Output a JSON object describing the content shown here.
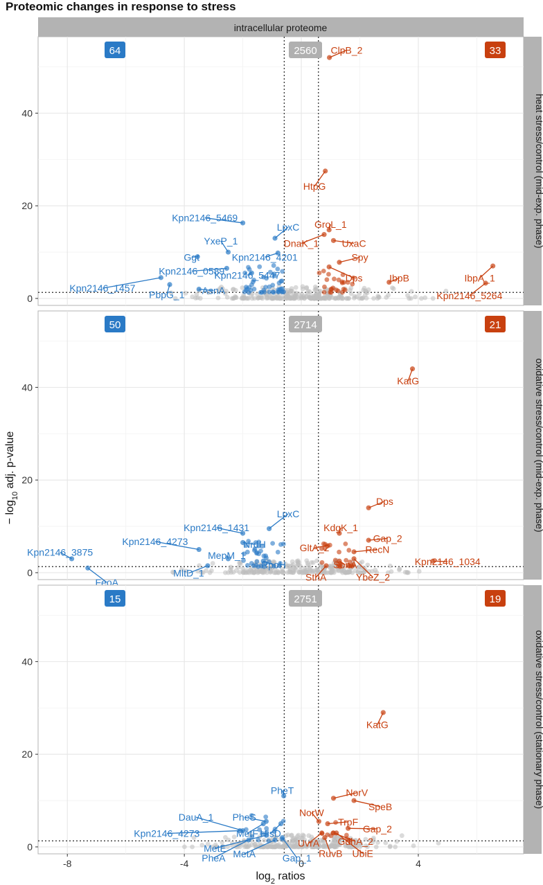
{
  "title": "Proteomic changes in response to stress",
  "colors": {
    "up": "#c8400f",
    "down": "#2a7ac6",
    "ns": "#bdbdbd",
    "strip": "#b3b3b3"
  },
  "chart_data": {
    "type": "scatter",
    "title": "Proteomic changes in response to stress",
    "column_strip": "intracellular proteome",
    "xlabel_main": "log",
    "xlabel_sub": "2",
    "xlabel_rest": " ratios",
    "ylabel_prefix": "− log",
    "ylabel_sub": "10",
    "ylabel_rest": " adj. p-value",
    "xlim": [
      -9.0,
      7.6
    ],
    "ylim": [
      -1.5,
      56.5
    ],
    "x_ticks": [
      -8,
      -4,
      0,
      4
    ],
    "x_tick_labels": [
      "-8",
      "-4",
      "0",
      "4"
    ],
    "y_ticks": [
      0,
      20,
      40
    ],
    "y_tick_labels": [
      "0",
      "20",
      "40"
    ],
    "fc_threshold": 0.585,
    "p_threshold": 1.3,
    "panels": [
      {
        "strip": "heat stress/control (mid-exp. phase)",
        "down_count": "64",
        "ns_count": "2560",
        "up_count": "33",
        "labeled": [
          {
            "name": "ClpB_2",
            "x": 0.96,
            "y": 52.0,
            "dir": "up",
            "lx": 1.55,
            "ly": 54.2
          },
          {
            "name": "HtpG",
            "x": 0.82,
            "y": 27.5,
            "dir": "up",
            "lx": 0.45,
            "ly": 24.8
          },
          {
            "name": "GroL_1",
            "x": 0.95,
            "y": 14.8,
            "dir": "up",
            "lx": 1.0,
            "ly": 16.6
          },
          {
            "name": "DnaK_1",
            "x": 0.78,
            "y": 13.8,
            "dir": "up",
            "lx": 0.0,
            "ly": 12.5
          },
          {
            "name": "UxaC",
            "x": 1.1,
            "y": 12.5,
            "dir": "up",
            "lx": 1.8,
            "ly": 12.5
          },
          {
            "name": "Spy",
            "x": 1.3,
            "y": 7.8,
            "dir": "up",
            "lx": 2.0,
            "ly": 9.5
          },
          {
            "name": "Dps",
            "x": 0.95,
            "y": 6.8,
            "dir": "up",
            "lx": 1.8,
            "ly": 5.0
          },
          {
            "name": "IbpB",
            "x": 3.0,
            "y": 3.5,
            "dir": "up",
            "lx": 3.35,
            "ly": 5.0
          },
          {
            "name": "IbpA_1",
            "x": 6.55,
            "y": 7.0,
            "dir": "up",
            "lx": 6.1,
            "ly": 5.0
          },
          {
            "name": "Kpn2146_5264",
            "x": 6.3,
            "y": 3.3,
            "dir": "up",
            "lx": 5.75,
            "ly": 1.2
          },
          {
            "name": "Kpn2146_5469",
            "x": -2.0,
            "y": 16.3,
            "dir": "down",
            "lx": -3.3,
            "ly": 18.0
          },
          {
            "name": "LpxC",
            "x": -0.9,
            "y": 13.0,
            "dir": "down",
            "lx": -0.45,
            "ly": 16.0
          },
          {
            "name": "YxeP_1",
            "x": -2.5,
            "y": 10.0,
            "dir": "down",
            "lx": -2.75,
            "ly": 13.0
          },
          {
            "name": "Ggt",
            "x": -3.55,
            "y": 9.0,
            "dir": "down",
            "lx": -3.75,
            "ly": 9.5
          },
          {
            "name": "Kpn2146_4201",
            "x": -0.8,
            "y": 9.8,
            "dir": "down",
            "lx": -1.25,
            "ly": 9.5
          },
          {
            "name": "Kpn2146_0589",
            "x": -2.55,
            "y": 6.5,
            "dir": "down",
            "lx": -3.75,
            "ly": 6.5
          },
          {
            "name": "Kpn2146_5447",
            "x": -1.7,
            "y": 5.5,
            "dir": "down",
            "lx": -1.85,
            "ly": 5.6
          },
          {
            "name": "Kpn2146_1457",
            "x": -4.8,
            "y": 4.5,
            "dir": "down",
            "lx": -6.8,
            "ly": 2.8
          },
          {
            "name": "AsnA",
            "x": -3.5,
            "y": 2.0,
            "dir": "down",
            "lx": -3.0,
            "ly": 2.3
          },
          {
            "name": "PbpG_1",
            "x": -4.5,
            "y": 3.0,
            "dir": "down",
            "lx": -4.6,
            "ly": 1.4
          }
        ]
      },
      {
        "strip": "oxidative stress/control (mid-exp. phase)",
        "down_count": "50",
        "ns_count": "2714",
        "up_count": "21",
        "labeled": [
          {
            "name": "KatG",
            "x": 3.8,
            "y": 44.0,
            "dir": "up",
            "lx": 3.65,
            "ly": 42.0
          },
          {
            "name": "Dps",
            "x": 2.3,
            "y": 14.0,
            "dir": "up",
            "lx": 2.85,
            "ly": 16.0
          },
          {
            "name": "KdgK_1",
            "x": 1.3,
            "y": 8.5,
            "dir": "up",
            "lx": 1.35,
            "ly": 10.3
          },
          {
            "name": "Gap_2",
            "x": 2.3,
            "y": 7.0,
            "dir": "up",
            "lx": 2.95,
            "ly": 8.0
          },
          {
            "name": "GltA_2",
            "x": 0.9,
            "y": 5.8,
            "dir": "up",
            "lx": 0.45,
            "ly": 6.0
          },
          {
            "name": "RecN",
            "x": 1.8,
            "y": 4.5,
            "dir": "up",
            "lx": 2.6,
            "ly": 5.6
          },
          {
            "name": "Kpn2146_1034",
            "x": 4.5,
            "y": 2.5,
            "dir": "up",
            "lx": 5.0,
            "ly": 3.0
          },
          {
            "name": "SbnA",
            "x": 1.3,
            "y": 2.5,
            "dir": "up",
            "lx": 1.5,
            "ly": 2.3
          },
          {
            "name": "SthA",
            "x": 0.85,
            "y": 1.5,
            "dir": "up",
            "lx": 0.5,
            "ly": -0.4
          },
          {
            "name": "YbeZ_2",
            "x": 1.8,
            "y": 3.0,
            "dir": "up",
            "lx": 2.45,
            "ly": -0.4
          },
          {
            "name": "LpxC",
            "x": -1.1,
            "y": 9.5,
            "dir": "down",
            "lx": -0.45,
            "ly": 13.3
          },
          {
            "name": "Kpn2146_1431",
            "x": -2.0,
            "y": 8.5,
            "dir": "down",
            "lx": -2.9,
            "ly": 10.3
          },
          {
            "name": "Kpn2146_4273",
            "x": -3.5,
            "y": 5.0,
            "dir": "down",
            "lx": -5.0,
            "ly": 7.3
          },
          {
            "name": "NrdH",
            "x": -2.0,
            "y": 6.5,
            "dir": "down",
            "lx": -1.6,
            "ly": 6.7
          },
          {
            "name": "Kpn2146_3875",
            "x": -7.85,
            "y": 3.0,
            "dir": "down",
            "lx": -8.25,
            "ly": 5.0
          },
          {
            "name": "MepM_1",
            "x": -2.5,
            "y": 3.0,
            "dir": "down",
            "lx": -2.55,
            "ly": 4.3
          },
          {
            "name": "RpoH",
            "x": -1.3,
            "y": 2.5,
            "dir": "down",
            "lx": -0.95,
            "ly": 2.3
          },
          {
            "name": "MltD_1",
            "x": -3.2,
            "y": 1.5,
            "dir": "down",
            "lx": -3.85,
            "ly": 0.5
          },
          {
            "name": "FeoA",
            "x": -7.3,
            "y": 1.0,
            "dir": "down",
            "lx": -6.65,
            "ly": -1.5
          }
        ]
      },
      {
        "strip": "oxidative stress/control (stationary phase)",
        "down_count": "15",
        "ns_count": "2751",
        "up_count": "19",
        "labeled": [
          {
            "name": "KatG",
            "x": 2.8,
            "y": 29.0,
            "dir": "up",
            "lx": 2.6,
            "ly": 27.0
          },
          {
            "name": "NorV",
            "x": 1.1,
            "y": 10.5,
            "dir": "up",
            "lx": 1.9,
            "ly": 12.3
          },
          {
            "name": "SpeB",
            "x": 1.8,
            "y": 10.0,
            "dir": "up",
            "lx": 2.7,
            "ly": 9.3
          },
          {
            "name": "NorW",
            "x": 0.6,
            "y": 5.5,
            "dir": "up",
            "lx": 0.35,
            "ly": 8.0
          },
          {
            "name": "TrpF",
            "x": 0.9,
            "y": 5.0,
            "dir": "up",
            "lx": 1.6,
            "ly": 6.0
          },
          {
            "name": "Gap_2",
            "x": 1.6,
            "y": 4.0,
            "dir": "up",
            "lx": 2.6,
            "ly": 4.5
          },
          {
            "name": "GdhA_2",
            "x": 1.1,
            "y": 3.0,
            "dir": "up",
            "lx": 1.85,
            "ly": 1.8
          },
          {
            "name": "UvrA",
            "x": 0.7,
            "y": 3.0,
            "dir": "up",
            "lx": 0.25,
            "ly": 1.4
          },
          {
            "name": "RuvB",
            "x": 0.8,
            "y": 2.0,
            "dir": "up",
            "lx": 1.0,
            "ly": -0.8
          },
          {
            "name": "UbiE",
            "x": 1.2,
            "y": 3.0,
            "dir": "up",
            "lx": 2.1,
            "ly": -0.8
          },
          {
            "name": "PheT",
            "x": -0.6,
            "y": 11.0,
            "dir": "down",
            "lx": -0.65,
            "ly": 12.8
          },
          {
            "name": "DauA_1",
            "x": -2.0,
            "y": 3.5,
            "dir": "down",
            "lx": -3.6,
            "ly": 7.0
          },
          {
            "name": "PheS",
            "x": -1.2,
            "y": 5.5,
            "dir": "down",
            "lx": -1.95,
            "ly": 7.0
          },
          {
            "name": "Kpn2146_4273",
            "x": -2.1,
            "y": 3.5,
            "dir": "down",
            "lx": -4.6,
            "ly": 3.5
          },
          {
            "name": "MetF",
            "x": -1.3,
            "y": 5.0,
            "dir": "down",
            "lx": -1.85,
            "ly": 3.5
          },
          {
            "name": "HisD",
            "x": -0.7,
            "y": 5.0,
            "dir": "down",
            "lx": -1.05,
            "ly": 3.5
          },
          {
            "name": "MetE",
            "x": -1.2,
            "y": 2.5,
            "dir": "down",
            "lx": -2.95,
            "ly": 0.3
          },
          {
            "name": "MetA",
            "x": -0.9,
            "y": 1.5,
            "dir": "down",
            "lx": -1.95,
            "ly": -0.9
          },
          {
            "name": "PheA",
            "x": -1.8,
            "y": 1.5,
            "dir": "down",
            "lx": -3.0,
            "ly": -1.8
          },
          {
            "name": "Gap_1",
            "x": -0.65,
            "y": 2.0,
            "dir": "down",
            "lx": -0.15,
            "ly": -1.8
          }
        ]
      }
    ],
    "background_points_note": "dense cloud of non-significant and significant unlabeled proteins near origin"
  }
}
